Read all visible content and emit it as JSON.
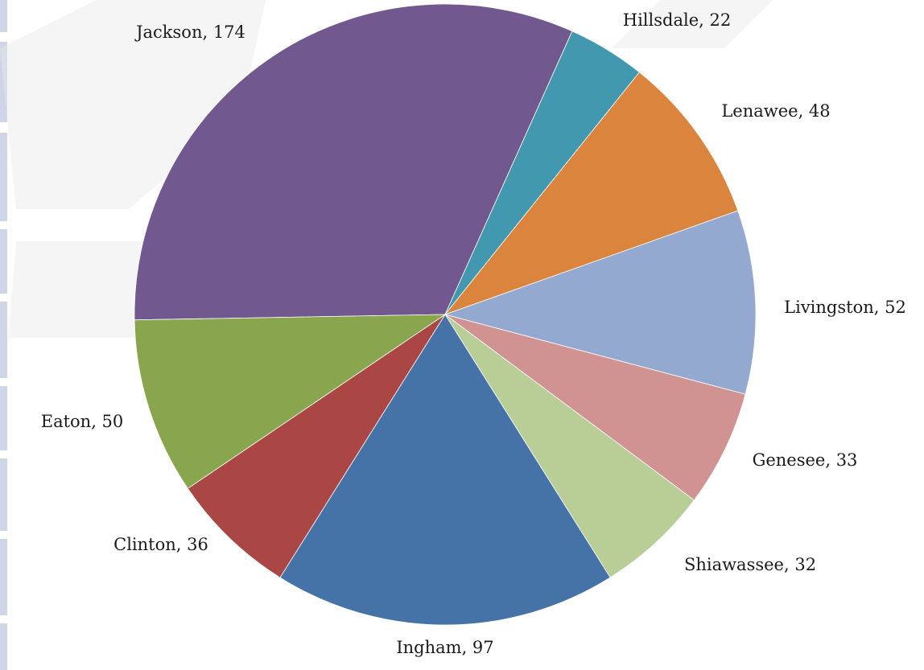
{
  "chart_data": {
    "type": "pie",
    "title": "",
    "slices": [
      {
        "label": "Jackson",
        "value": 174,
        "color": "#71588f"
      },
      {
        "label": "Hillsdale",
        "value": 22,
        "color": "#4198af"
      },
      {
        "label": "Lenawee",
        "value": 48,
        "color": "#db843d"
      },
      {
        "label": "Livingston",
        "value": 52,
        "color": "#93a9cf"
      },
      {
        "label": "Genesee",
        "value": 33,
        "color": "#d19392"
      },
      {
        "label": "Shiawassee",
        "value": 32,
        "color": "#b9cd96"
      },
      {
        "label": "Ingham",
        "value": 97,
        "color": "#4572a7"
      },
      {
        "label": "Clinton",
        "value": 36,
        "color": "#aa4643"
      },
      {
        "label": "Eaton",
        "value": 50,
        "color": "#89a54e"
      }
    ],
    "data_labels": "category, value",
    "legend": "none"
  }
}
